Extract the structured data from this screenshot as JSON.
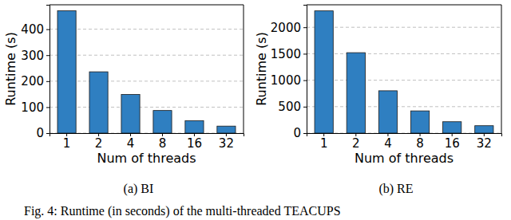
{
  "chart_data": [
    {
      "type": "bar",
      "title": "(a) BI",
      "x_label": "Num of threads",
      "y_label": "Runtime (s)",
      "categories": [
        "1",
        "2",
        "4",
        "8",
        "16",
        "32"
      ],
      "values": [
        471,
        236,
        149,
        87,
        48,
        27
      ],
      "color": "#2f7fc1",
      "ylim": [
        0,
        494
      ],
      "yticks": [
        0,
        100,
        200,
        300,
        400
      ],
      "grid": true
    },
    {
      "type": "bar",
      "title": "(b) RE",
      "x_label": "Num of threads",
      "y_label": "Runtime (s)",
      "categories": [
        "1",
        "2",
        "4",
        "8",
        "16",
        "32"
      ],
      "values": [
        2310,
        1520,
        800,
        420,
        215,
        140
      ],
      "color": "#2f7fc1",
      "ylim": [
        0,
        2425
      ],
      "yticks": [
        0,
        500,
        1000,
        1500,
        2000
      ],
      "grid": true
    }
  ],
  "caption": "Fig. 4: Runtime (in seconds) of the multi-threaded TEACUPS"
}
